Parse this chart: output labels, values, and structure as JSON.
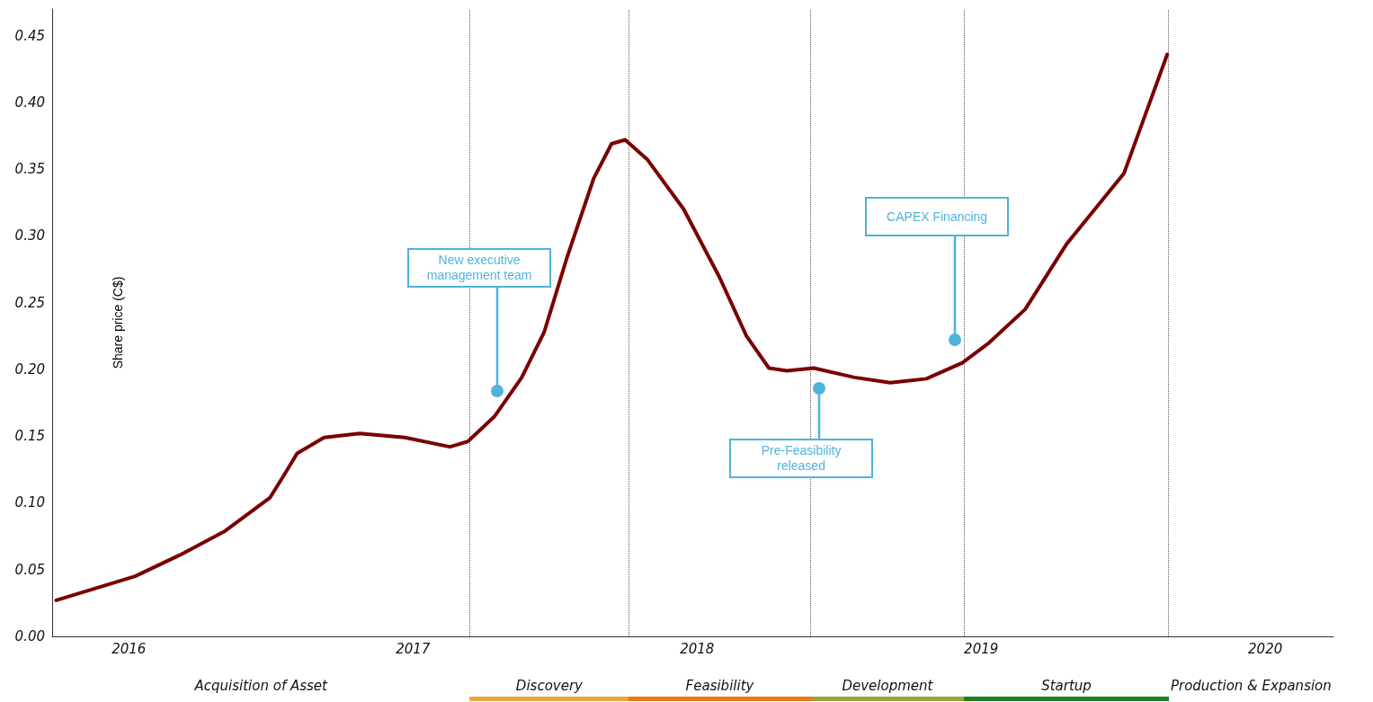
{
  "chart_data": {
    "type": "line",
    "ylabel": "Share price (C$)",
    "series": [
      {
        "color": "#7a0000",
        "x": [
          2015.744,
          2016.022,
          2016.18,
          2016.339,
          2016.497,
          2016.544,
          2016.592,
          2016.687,
          2016.813,
          2016.972,
          2017.13,
          2017.193,
          2017.288,
          2017.383,
          2017.462,
          2017.541,
          2017.636,
          2017.699,
          2017.747,
          2017.826,
          2017.953,
          2018.079,
          2018.174,
          2018.253,
          2018.316,
          2018.411,
          2018.554,
          2018.68,
          2018.807,
          2018.934,
          2019.028,
          2019.155,
          2019.301,
          2019.503,
          2019.655
        ],
        "values": [
          0.027,
          0.045,
          0.061,
          0.079,
          0.104,
          0.12,
          0.137,
          0.149,
          0.152,
          0.149,
          0.142,
          0.146,
          0.165,
          0.194,
          0.228,
          0.283,
          0.343,
          0.369,
          0.372,
          0.357,
          0.32,
          0.269,
          0.225,
          0.201,
          0.199,
          0.201,
          0.194,
          0.19,
          0.193,
          0.205,
          0.22,
          0.245,
          0.294,
          0.347,
          0.436
        ]
      }
    ],
    "xlim": [
      2015.73,
      2020.24
    ],
    "xticks": [
      2016,
      2017,
      2018,
      2019,
      2020
    ],
    "ylim": [
      0,
      0.47
    ],
    "yticks": [
      {
        "value": 0,
        "label": "0.00"
      },
      {
        "value": 0.05,
        "label": "0.05"
      },
      {
        "value": 0.1,
        "label": "0.10"
      },
      {
        "value": 0.15,
        "label": "0.15"
      },
      {
        "value": 0.2,
        "label": "0.20"
      },
      {
        "value": 0.25,
        "label": "0.25"
      },
      {
        "value": 0.3,
        "label": "0.30"
      },
      {
        "value": 0.35,
        "label": "0.35"
      },
      {
        "value": 0.4,
        "label": "0.40"
      },
      {
        "value": 0.45,
        "label": "0.45"
      }
    ],
    "ref_lines": [
      {
        "axis": "x",
        "value": 2017.2,
        "line_style": "dotted",
        "color": "#555555"
      },
      {
        "axis": "x",
        "value": 2017.76,
        "line_style": "dotted",
        "color": "#555555"
      },
      {
        "axis": "x",
        "value": 2018.4,
        "line_style": "dotted",
        "color": "#555555"
      },
      {
        "axis": "x",
        "value": 2018.94,
        "line_style": "dotted",
        "color": "#555555"
      },
      {
        "axis": "x",
        "value": 2019.66,
        "line_style": "dotted",
        "color": "#555555"
      }
    ],
    "annotations": [
      "Acquisition of Asset",
      "Discovery",
      "Feasibility",
      "Development",
      "Startup",
      "Production & Expansion",
      {
        "text": "New executive management team",
        "x": 2017.297,
        "y": 0.184
      },
      {
        "text": "Pre-Feasibility released",
        "x": 2018.43,
        "y": 0.186
      },
      {
        "text": "CAPEX Financing",
        "x": 2018.908,
        "y": 0.222
      }
    ],
    "grid": false,
    "marker": "none",
    "line_style": "solid"
  }
}
